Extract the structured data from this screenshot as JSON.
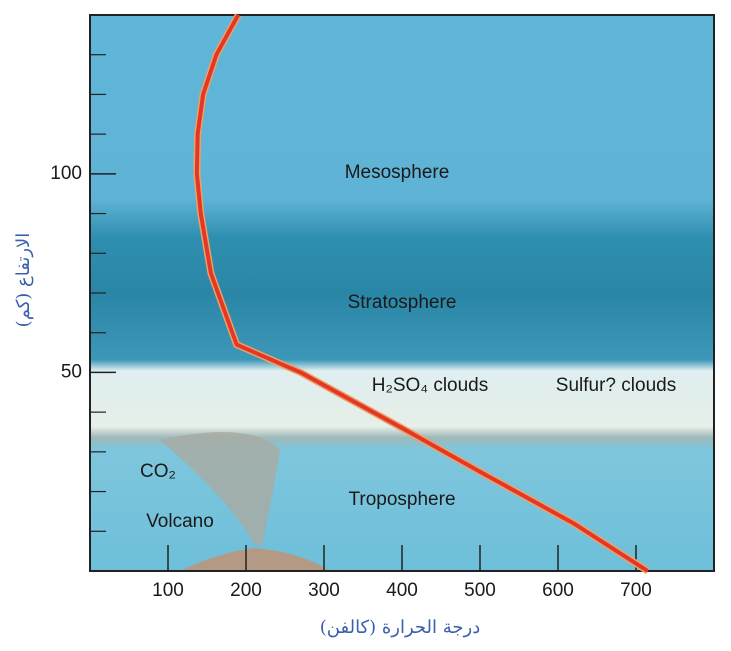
{
  "chart_data": {
    "type": "line",
    "xlabel": "درجة الحرارة (كالفن)",
    "ylabel": "الارتفاع (كم)",
    "annotations": [
      "Mesosphere",
      "Stratosphere",
      "H₂SO₄ clouds",
      "Sulfur? clouds",
      "CO₂",
      "Troposphere",
      "Volcano"
    ],
    "xlim": [
      0,
      800
    ],
    "ylim": [
      0,
      140
    ],
    "xticks": [
      100,
      200,
      300,
      400,
      500,
      600,
      700
    ],
    "yticks": [
      50,
      100
    ],
    "yminorticks": [
      10,
      20,
      30,
      40,
      60,
      70,
      80,
      90,
      110,
      120,
      130
    ],
    "series": [
      {
        "color": "#e2382a",
        "x": [
          190,
          162,
          145,
          138,
          137,
          142,
          155,
          188,
          270,
          400,
          500,
          620,
          715
        ],
        "values": [
          140,
          130,
          120,
          110,
          100,
          90,
          75,
          57,
          50,
          36,
          25,
          12,
          0
        ]
      }
    ]
  }
}
